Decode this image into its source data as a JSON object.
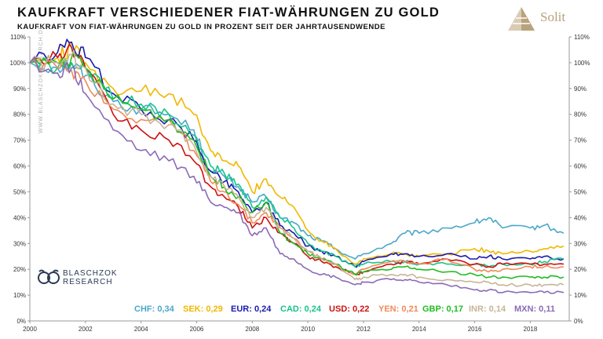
{
  "header": {
    "title": "KAUFKRAFT VERSCHIEDENER FIAT-WÄHRUNGEN ZU GOLD",
    "subtitle": "KAUFKRAFT VON FIAT-WÄHRUNGEN ZU GOLD IN PROZENT SEIT DER JAHRTAUSENDWENDE"
  },
  "brand": {
    "name": "Solit",
    "accent": "#b8a37c"
  },
  "watermark": "WWW.BLASCHZOKRESEARCH.DE",
  "research_logo": {
    "line1": "BLASCHZOK",
    "line2": "RESEARCH",
    "color": "#2a3a55"
  },
  "chart_data": {
    "type": "line",
    "title": "KAUFKRAFT VERSCHIEDENER FIAT-WÄHRUNGEN ZU GOLD",
    "subtitle": "KAUFKRAFT VON FIAT-WÄHRUNGEN ZU GOLD IN PROZENT SEIT DER JAHRTAUSENDWENDE",
    "xlabel": "",
    "ylabel": "",
    "xlim": [
      2000,
      2019.4
    ],
    "ylim": [
      0,
      110
    ],
    "x_ticks": [
      "2000",
      "2002",
      "2004",
      "2006",
      "2008",
      "2010",
      "2012",
      "2014",
      "2016",
      "2018"
    ],
    "y_ticks": [
      "0%",
      "10%",
      "20%",
      "30%",
      "40%",
      "50%",
      "60%",
      "70%",
      "80%",
      "90%",
      "100%",
      "110%"
    ],
    "grid": false,
    "legend_placement": "bottom-right",
    "x": [
      2000,
      2001,
      2001.5,
      2002,
      2003,
      2004,
      2005,
      2005.9,
      2006.5,
      2007,
      2007.5,
      2008,
      2008.5,
      2009,
      2009.5,
      2010,
      2010.5,
      2011,
      2011.7,
      2012,
      2013,
      2013.5,
      2014,
      2015,
      2016,
      2016.5,
      2017,
      2018,
      2018.5,
      2019.2
    ],
    "series": [
      {
        "name": "CHF",
        "label": "CHF: 0,34",
        "color": "#4aa8c8",
        "values": [
          100,
          98,
          100,
          95,
          85,
          82,
          80,
          74,
          58,
          56,
          52,
          46,
          48,
          40,
          38,
          33,
          31,
          28,
          24,
          26,
          30,
          34,
          34,
          36,
          38,
          40,
          36,
          36,
          37,
          34
        ]
      },
      {
        "name": "SEK",
        "label": "SEK: 0,29",
        "color": "#f0b800",
        "values": [
          100,
          102,
          106,
          100,
          90,
          89,
          88,
          80,
          66,
          62,
          60,
          50,
          55,
          48,
          44,
          35,
          31,
          28,
          22,
          24,
          26,
          26,
          25,
          26,
          28,
          27,
          26,
          27,
          28,
          29
        ]
      },
      {
        "name": "EUR",
        "label": "EUR: 0,24",
        "color": "#1a1ab0",
        "values": [
          100,
          104,
          108,
          102,
          88,
          82,
          78,
          70,
          58,
          54,
          50,
          42,
          46,
          37,
          34,
          29,
          27,
          25,
          21,
          23,
          26,
          26,
          25,
          26,
          24,
          25,
          24,
          24,
          25,
          24
        ]
      },
      {
        "name": "CAD",
        "label": "CAD: 0,24",
        "color": "#18c48a",
        "values": [
          100,
          98,
          100,
          98,
          86,
          84,
          80,
          72,
          60,
          57,
          53,
          44,
          48,
          40,
          36,
          30,
          27,
          25,
          21,
          22,
          23,
          23,
          22,
          22,
          22,
          21,
          22,
          22,
          23,
          24
        ]
      },
      {
        "name": "USD",
        "label": "USD: 0,22",
        "color": "#cc1111",
        "values": [
          100,
          102,
          106,
          98,
          80,
          74,
          70,
          62,
          52,
          48,
          44,
          36,
          40,
          34,
          30,
          25,
          23,
          21,
          18,
          19,
          22,
          23,
          22,
          24,
          22,
          21,
          22,
          22,
          22,
          22
        ]
      },
      {
        "name": "YEN",
        "label": "YEN: 0,21",
        "color": "#f08a5a",
        "values": [
          100,
          98,
          97,
          93,
          82,
          78,
          78,
          66,
          54,
          50,
          45,
          38,
          42,
          36,
          32,
          27,
          24,
          22,
          18,
          20,
          23,
          23,
          22,
          24,
          20,
          19,
          20,
          21,
          21,
          21
        ]
      },
      {
        "name": "GBP",
        "label": "GBP: 0,17",
        "color": "#22bb22",
        "values": [
          100,
          100,
          102,
          98,
          86,
          82,
          78,
          70,
          56,
          52,
          48,
          42,
          46,
          34,
          30,
          26,
          24,
          22,
          18,
          19,
          20,
          21,
          20,
          19,
          18,
          17,
          17,
          17,
          17,
          17
        ]
      },
      {
        "name": "INR",
        "label": "INR: 0,14",
        "color": "#c8b496",
        "values": [
          100,
          100,
          103,
          98,
          84,
          80,
          76,
          68,
          56,
          52,
          48,
          40,
          44,
          36,
          32,
          27,
          24,
          22,
          16,
          17,
          18,
          18,
          17,
          16,
          15,
          15,
          14,
          14,
          14,
          14
        ]
      },
      {
        "name": "MXN",
        "label": "MXN: 0,11",
        "color": "#8a6ab8",
        "values": [
          100,
          96,
          98,
          88,
          74,
          66,
          62,
          56,
          46,
          44,
          42,
          33,
          36,
          26,
          24,
          20,
          18,
          17,
          14,
          15,
          16,
          16,
          15,
          14,
          12,
          12,
          11,
          11,
          11,
          11
        ]
      }
    ]
  }
}
